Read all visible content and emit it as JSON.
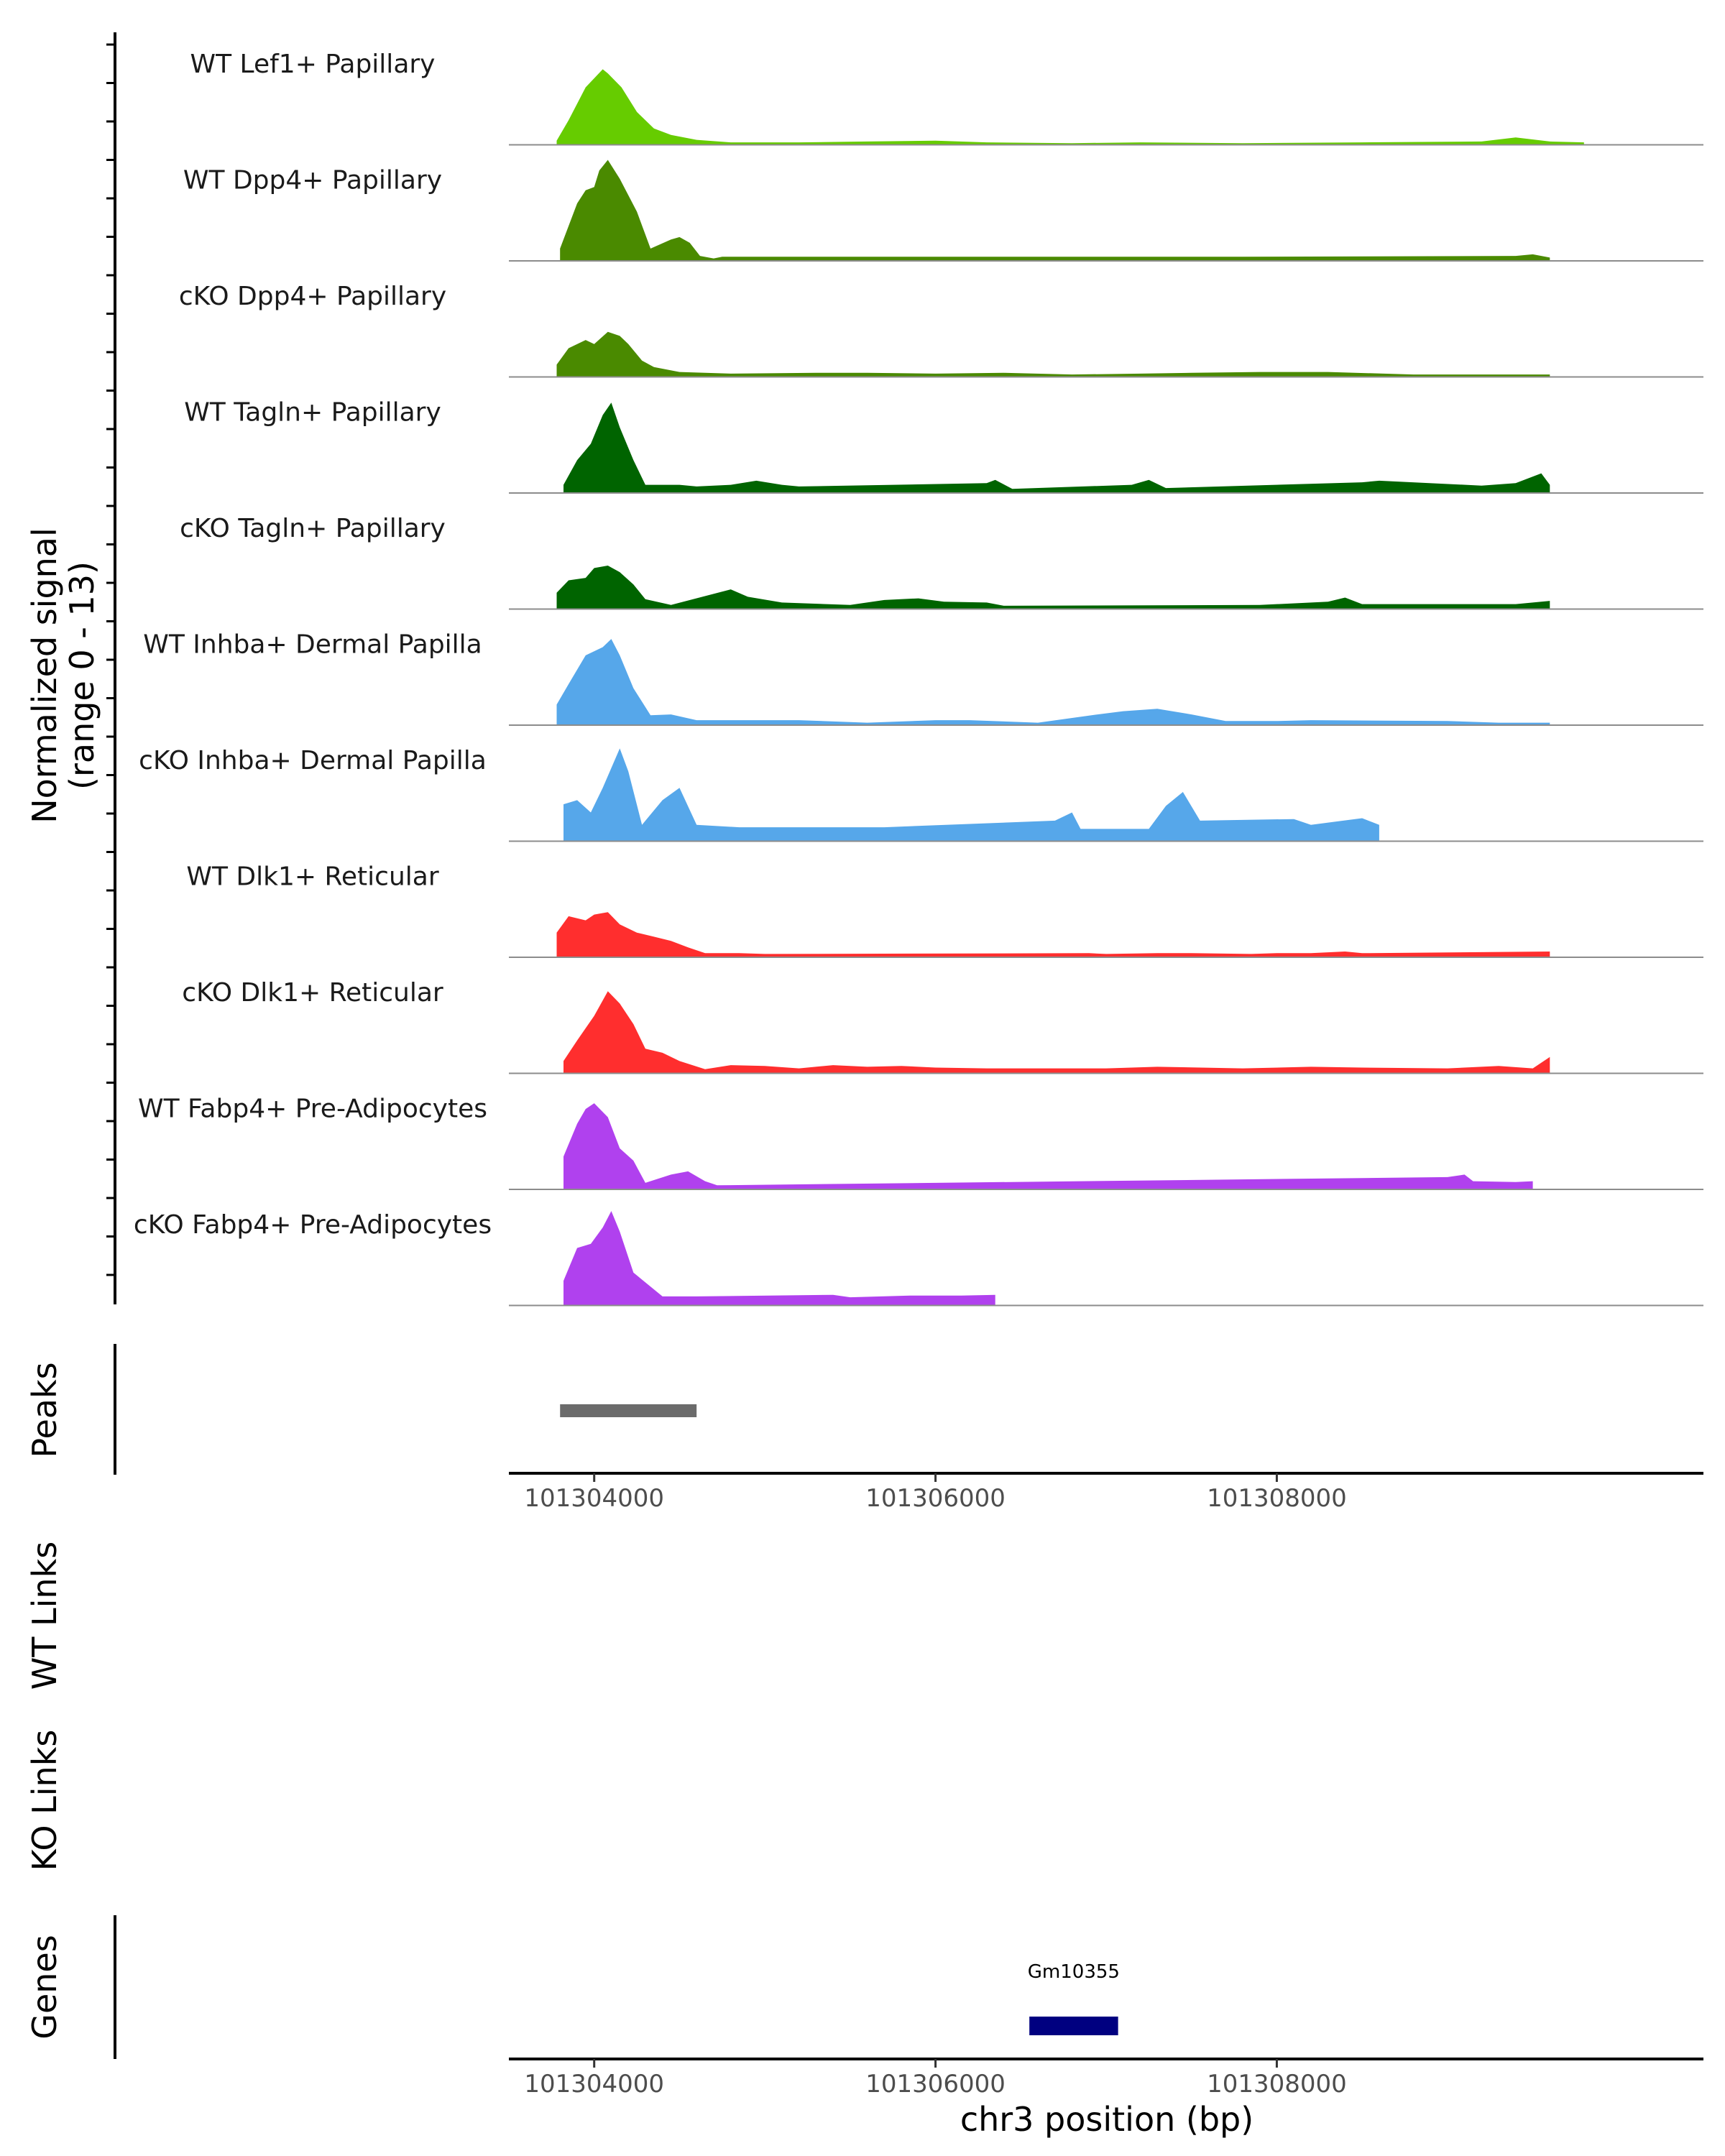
{
  "chart_data": {
    "type": "area",
    "title": "",
    "region": {
      "chromosome": "chr3",
      "start": 101303500,
      "end": 101310500
    },
    "xlabel": "chr3 position (bp)",
    "x_ticks": [
      101304000,
      101306000,
      101308000
    ],
    "x_tick_labels": [
      "101304000",
      "101306000",
      "101308000"
    ],
    "ylabel_line1": "Normalized signal",
    "ylabel_line2": "(range 0 - 13)",
    "ylim": [
      0,
      13
    ],
    "grid": false,
    "series": [
      {
        "name": "WT Lef1+ Papillary",
        "color": "#66cc00",
        "points": [
          [
            101303780,
            0.5
          ],
          [
            101303850,
            3
          ],
          [
            101303950,
            7
          ],
          [
            101304050,
            9.2
          ],
          [
            101304080,
            8.7
          ],
          [
            101304160,
            7
          ],
          [
            101304250,
            4
          ],
          [
            101304350,
            2
          ],
          [
            101304450,
            1.2
          ],
          [
            101304600,
            0.6
          ],
          [
            101304800,
            0.3
          ],
          [
            101305200,
            0.3
          ],
          [
            101305600,
            0.4
          ],
          [
            101306000,
            0.5
          ],
          [
            101306300,
            0.3
          ],
          [
            101306800,
            0.2
          ],
          [
            101307200,
            0.3
          ],
          [
            101307800,
            0.2
          ],
          [
            101308500,
            0.3
          ],
          [
            101309200,
            0.4
          ],
          [
            101309400,
            0.9
          ],
          [
            101309600,
            0.4
          ],
          [
            101309800,
            0.3
          ]
        ]
      },
      {
        "name": "WT Dpp4+ Papillary",
        "color": "#4a8a00",
        "points": [
          [
            101303800,
            1.5
          ],
          [
            101303900,
            7
          ],
          [
            101303950,
            8.6
          ],
          [
            101304000,
            9
          ],
          [
            101304030,
            11
          ],
          [
            101304080,
            12.3
          ],
          [
            101304150,
            10
          ],
          [
            101304200,
            8
          ],
          [
            101304250,
            6
          ],
          [
            101304330,
            1.5
          ],
          [
            101304450,
            2.6
          ],
          [
            101304500,
            2.9
          ],
          [
            101304560,
            2.2
          ],
          [
            101304620,
            0.6
          ],
          [
            101304700,
            0.3
          ],
          [
            101304750,
            0.5
          ],
          [
            101304900,
            0.5
          ],
          [
            101306600,
            0.5
          ],
          [
            101306700,
            0.5
          ],
          [
            101306850,
            0.5
          ],
          [
            101307500,
            0.5
          ],
          [
            101307800,
            0.5
          ],
          [
            101309400,
            0.6
          ],
          [
            101309500,
            0.8
          ],
          [
            101309600,
            0.4
          ]
        ]
      },
      {
        "name": "cKO Dpp4+ Papillary",
        "color": "#4a8a00",
        "points": [
          [
            101303780,
            1.5
          ],
          [
            101303850,
            3.5
          ],
          [
            101303950,
            4.5
          ],
          [
            101304000,
            4
          ],
          [
            101304080,
            5.5
          ],
          [
            101304150,
            5
          ],
          [
            101304200,
            4
          ],
          [
            101304280,
            2
          ],
          [
            101304350,
            1.2
          ],
          [
            101304500,
            0.6
          ],
          [
            101304800,
            0.4
          ],
          [
            101305300,
            0.5
          ],
          [
            101305600,
            0.5
          ],
          [
            101306000,
            0.4
          ],
          [
            101306400,
            0.5
          ],
          [
            101306800,
            0.3
          ],
          [
            101307200,
            0.4
          ],
          [
            101307500,
            0.5
          ],
          [
            101307900,
            0.6
          ],
          [
            101308300,
            0.6
          ],
          [
            101308800,
            0.3
          ],
          [
            101309200,
            0.3
          ],
          [
            101309600,
            0.3
          ]
        ]
      },
      {
        "name": "WT Tagln+ Papillary",
        "color": "#006400",
        "points": [
          [
            101303820,
            1
          ],
          [
            101303900,
            4
          ],
          [
            101303980,
            6
          ],
          [
            101304050,
            9.5
          ],
          [
            101304100,
            11
          ],
          [
            101304150,
            8
          ],
          [
            101304230,
            4
          ],
          [
            101304300,
            1
          ],
          [
            101304500,
            1
          ],
          [
            101304600,
            0.8
          ],
          [
            101304800,
            1
          ],
          [
            101304950,
            1.5
          ],
          [
            101305100,
            1
          ],
          [
            101305200,
            0.8
          ],
          [
            101306300,
            1.2
          ],
          [
            101306350,
            1.6
          ],
          [
            101306450,
            0.5
          ],
          [
            101307150,
            1
          ],
          [
            101307250,
            1.6
          ],
          [
            101307350,
            0.6
          ],
          [
            101308500,
            1.3
          ],
          [
            101308600,
            1.5
          ],
          [
            101309200,
            0.9
          ],
          [
            101309400,
            1.2
          ],
          [
            101309550,
            2.4
          ],
          [
            101309600,
            1
          ]
        ]
      },
      {
        "name": "cKO Tagln+ Papillary",
        "color": "#006400",
        "points": [
          [
            101303780,
            2
          ],
          [
            101303850,
            3.5
          ],
          [
            101303950,
            3.8
          ],
          [
            101304000,
            5
          ],
          [
            101304080,
            5.3
          ],
          [
            101304150,
            4.5
          ],
          [
            101304230,
            3
          ],
          [
            101304300,
            1.2
          ],
          [
            101304450,
            0.5
          ],
          [
            101304800,
            2.4
          ],
          [
            101304900,
            1.5
          ],
          [
            101305100,
            0.8
          ],
          [
            101305500,
            0.5
          ],
          [
            101305700,
            1.1
          ],
          [
            101305900,
            1.3
          ],
          [
            101306050,
            0.9
          ],
          [
            101306300,
            0.8
          ],
          [
            101306400,
            0.4
          ],
          [
            101307900,
            0.5
          ],
          [
            101308300,
            0.9
          ],
          [
            101308400,
            1.4
          ],
          [
            101308500,
            0.6
          ],
          [
            101309400,
            0.6
          ],
          [
            101309600,
            1
          ]
        ]
      },
      {
        "name": "WT Inhba+ Dermal Papilla",
        "color": "#56a7ea",
        "points": [
          [
            101303780,
            2.5
          ],
          [
            101303850,
            5
          ],
          [
            101303950,
            8.5
          ],
          [
            101304050,
            9.5
          ],
          [
            101304100,
            10.5
          ],
          [
            101304150,
            8.5
          ],
          [
            101304230,
            4.5
          ],
          [
            101304330,
            1.2
          ],
          [
            101304450,
            1.3
          ],
          [
            101304600,
            0.6
          ],
          [
            101304800,
            0.6
          ],
          [
            101305200,
            0.6
          ],
          [
            101305600,
            0.3
          ],
          [
            101306000,
            0.6
          ],
          [
            101306200,
            0.6
          ],
          [
            101306600,
            0.3
          ],
          [
            101306950,
            1.3
          ],
          [
            101307100,
            1.7
          ],
          [
            101307300,
            2
          ],
          [
            101307500,
            1.3
          ],
          [
            101307700,
            0.5
          ],
          [
            101308000,
            0.5
          ],
          [
            101308200,
            0.6
          ],
          [
            101309000,
            0.5
          ],
          [
            101309300,
            0.3
          ],
          [
            101309600,
            0.3
          ]
        ]
      },
      {
        "name": "cKO Inhba+ Dermal Papilla",
        "color": "#56a7ea",
        "points": [
          [
            101303820,
            4.5
          ],
          [
            101303900,
            5
          ],
          [
            101303980,
            3.5
          ],
          [
            101304050,
            6.5
          ],
          [
            101304150,
            11.3
          ],
          [
            101304200,
            8.5
          ],
          [
            101304280,
            2
          ],
          [
            101304400,
            5
          ],
          [
            101304500,
            6.5
          ],
          [
            101304600,
            2
          ],
          [
            101304850,
            1.7
          ],
          [
            101305000,
            1.7
          ],
          [
            101305500,
            1.7
          ],
          [
            101305700,
            1.7
          ],
          [
            101306700,
            2.5
          ],
          [
            101306800,
            3.5
          ],
          [
            101306850,
            1.5
          ],
          [
            101307250,
            1.5
          ],
          [
            101307350,
            4.3
          ],
          [
            101307450,
            6
          ],
          [
            101307550,
            2.5
          ],
          [
            101308100,
            2.7
          ],
          [
            101308200,
            2
          ],
          [
            101308500,
            2.8
          ],
          [
            101308600,
            2
          ]
        ]
      },
      {
        "name": "WT Dlk1+ Reticular",
        "color": "#ff2e2e",
        "points": [
          [
            101303780,
            3
          ],
          [
            101303850,
            5
          ],
          [
            101303950,
            4.5
          ],
          [
            101304000,
            5.2
          ],
          [
            101304080,
            5.5
          ],
          [
            101304150,
            4
          ],
          [
            101304250,
            3
          ],
          [
            101304350,
            2.5
          ],
          [
            101304450,
            2
          ],
          [
            101304550,
            1.2
          ],
          [
            101304650,
            0.5
          ],
          [
            101304850,
            0.5
          ],
          [
            101305000,
            0.4
          ],
          [
            101306900,
            0.5
          ],
          [
            101307000,
            0.4
          ],
          [
            101307300,
            0.5
          ],
          [
            101307500,
            0.5
          ],
          [
            101307850,
            0.4
          ],
          [
            101308000,
            0.5
          ],
          [
            101308200,
            0.5
          ],
          [
            101308400,
            0.7
          ],
          [
            101308500,
            0.5
          ],
          [
            101309600,
            0.7
          ]
        ]
      },
      {
        "name": "cKO Dlk1+ Reticular",
        "color": "#ff2e2e",
        "points": [
          [
            101303820,
            1.5
          ],
          [
            101303900,
            4
          ],
          [
            101304000,
            7
          ],
          [
            101304080,
            10
          ],
          [
            101304150,
            8.5
          ],
          [
            101304230,
            6
          ],
          [
            101304300,
            3
          ],
          [
            101304400,
            2.5
          ],
          [
            101304500,
            1.5
          ],
          [
            101304650,
            0.5
          ],
          [
            101304800,
            1
          ],
          [
            101305000,
            0.9
          ],
          [
            101305200,
            0.6
          ],
          [
            101305400,
            1
          ],
          [
            101305600,
            0.8
          ],
          [
            101305800,
            0.9
          ],
          [
            101306000,
            0.7
          ],
          [
            101306300,
            0.6
          ],
          [
            101306700,
            0.6
          ],
          [
            101307000,
            0.6
          ],
          [
            101307300,
            0.8
          ],
          [
            101307800,
            0.6
          ],
          [
            101308200,
            0.8
          ],
          [
            101308500,
            0.7
          ],
          [
            101309000,
            0.6
          ],
          [
            101309300,
            0.9
          ],
          [
            101309500,
            0.6
          ],
          [
            101309600,
            2
          ]
        ]
      },
      {
        "name": "WT Fabp4+ Pre-Adipocytes",
        "color": "#b041ee",
        "points": [
          [
            101303820,
            4
          ],
          [
            101303900,
            8
          ],
          [
            101303950,
            9.8
          ],
          [
            101304000,
            10.5
          ],
          [
            101304080,
            8.8
          ],
          [
            101304150,
            5
          ],
          [
            101304230,
            3.5
          ],
          [
            101304300,
            0.8
          ],
          [
            101304450,
            1.8
          ],
          [
            101304550,
            2.2
          ],
          [
            101304650,
            1
          ],
          [
            101304720,
            0.5
          ],
          [
            101309000,
            1.5
          ],
          [
            101309100,
            1.8
          ],
          [
            101309150,
            1
          ],
          [
            101309400,
            0.9
          ],
          [
            101309500,
            1
          ]
        ]
      },
      {
        "name": "cKO Fabp4+ Pre-Adipocytes",
        "color": "#b041ee",
        "points": [
          [
            101303820,
            3
          ],
          [
            101303900,
            7
          ],
          [
            101303980,
            7.5
          ],
          [
            101304050,
            9.5
          ],
          [
            101304100,
            11.5
          ],
          [
            101304150,
            9
          ],
          [
            101304230,
            4
          ],
          [
            101304400,
            1.1
          ],
          [
            101304600,
            1.1
          ],
          [
            101305400,
            1.3
          ],
          [
            101305500,
            1
          ],
          [
            101305850,
            1.2
          ],
          [
            101306050,
            1.2
          ],
          [
            101306150,
            1.2
          ],
          [
            101306350,
            1.3
          ]
        ]
      }
    ],
    "peaks_label": "Peaks",
    "peaks": [
      {
        "start": 101303800,
        "end": 101304600
      }
    ],
    "wt_links_label": "WT Links",
    "ko_links_label": "KO Links",
    "genes_label": "Genes",
    "genes": [
      {
        "name": "Gm10355",
        "start": 101306550,
        "end": 101307070
      }
    ],
    "colors": {
      "axis": "#000000",
      "baseline": "#8c8c8c",
      "peak": "#6b6b6b",
      "gene": "#000080"
    }
  }
}
